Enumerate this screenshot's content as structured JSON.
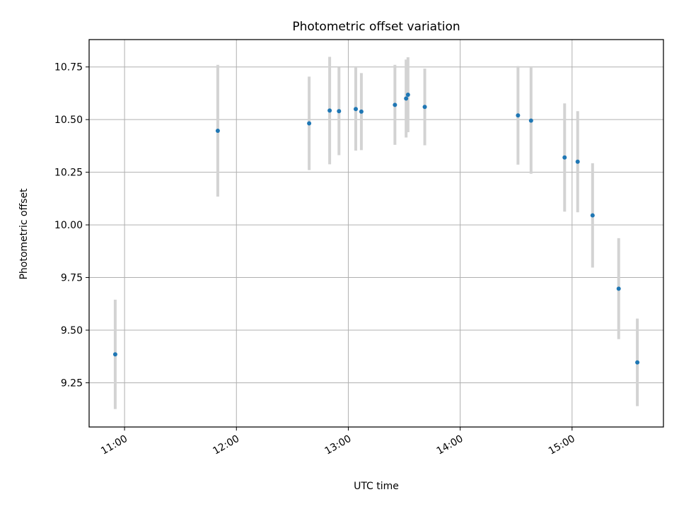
{
  "chart_data": {
    "type": "scatter",
    "title": "Photometric offset variation",
    "xlabel": "UTC time",
    "ylabel": "Photometric offset",
    "x_ticks": [
      "11:00",
      "12:00",
      "13:00",
      "14:00",
      "15:00"
    ],
    "y_ticks": [
      "9.25",
      "9.50",
      "9.75",
      "10.00",
      "10.25",
      "10.50",
      "10.75"
    ],
    "xlim": [
      "10:41",
      "15:49"
    ],
    "ylim": [
      9.04,
      10.88
    ],
    "grid": true,
    "series": [
      {
        "marker_color": "#1f77b4",
        "errorbar_color": "#d3d3d3",
        "points": [
          {
            "x": "10:55",
            "y": 9.385,
            "yerr": 0.26
          },
          {
            "x": "11:50",
            "y": 10.447,
            "yerr": 0.313
          },
          {
            "x": "12:39",
            "y": 10.482,
            "yerr": 0.222
          },
          {
            "x": "12:50",
            "y": 10.543,
            "yerr": 0.255
          },
          {
            "x": "12:55",
            "y": 10.54,
            "yerr": 0.209
          },
          {
            "x": "13:04",
            "y": 10.55,
            "yerr": 0.197
          },
          {
            "x": "13:07",
            "y": 10.538,
            "yerr": 0.183
          },
          {
            "x": "13:25",
            "y": 10.57,
            "yerr": 0.19
          },
          {
            "x": "13:31",
            "y": 10.6,
            "yerr": 0.185
          },
          {
            "x": "13:32",
            "y": 10.618,
            "yerr": 0.178
          },
          {
            "x": "13:41",
            "y": 10.56,
            "yerr": 0.182
          },
          {
            "x": "14:31",
            "y": 10.52,
            "yerr": 0.234
          },
          {
            "x": "14:38",
            "y": 10.495,
            "yerr": 0.252
          },
          {
            "x": "14:56",
            "y": 10.32,
            "yerr": 0.257
          },
          {
            "x": "15:03",
            "y": 10.3,
            "yerr": 0.24
          },
          {
            "x": "15:11",
            "y": 10.045,
            "yerr": 0.248
          },
          {
            "x": "15:25",
            "y": 9.697,
            "yerr": 0.24
          },
          {
            "x": "15:35",
            "y": 9.347,
            "yerr": 0.208
          }
        ]
      }
    ]
  }
}
